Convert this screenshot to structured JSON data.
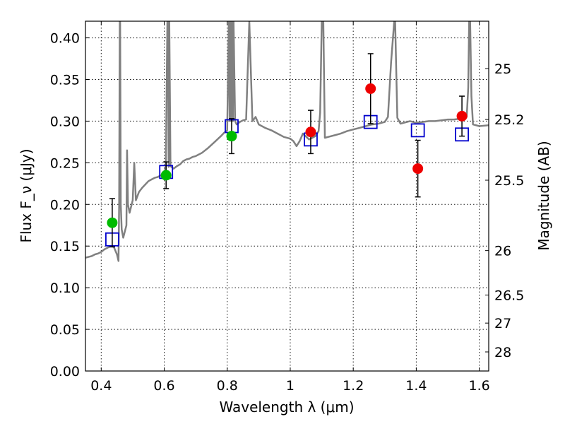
{
  "chart_data": {
    "type": "scatter",
    "title": "",
    "xlabel": "Wavelength λ (μm)",
    "ylabel": "Flux F_ν (μJy)",
    "ylabel_right": "Magnitude (AB)",
    "xlim": [
      0.35,
      1.63
    ],
    "ylim": [
      0.0,
      0.42
    ],
    "grid": true,
    "x_ticks": [
      {
        "value": 0.4,
        "label": "0.4"
      },
      {
        "value": 0.6,
        "label": "0.6"
      },
      {
        "value": 0.8,
        "label": "0.8"
      },
      {
        "value": 1.0,
        "label": "1"
      },
      {
        "value": 1.2,
        "label": "1.2"
      },
      {
        "value": 1.4,
        "label": "1.4"
      },
      {
        "value": 1.6,
        "label": "1.6"
      }
    ],
    "y_ticks": [
      {
        "value": 0.0,
        "label": "0.00"
      },
      {
        "value": 0.05,
        "label": "0.05"
      },
      {
        "value": 0.1,
        "label": "0.10"
      },
      {
        "value": 0.15,
        "label": "0.15"
      },
      {
        "value": 0.2,
        "label": "0.20"
      },
      {
        "value": 0.25,
        "label": "0.25"
      },
      {
        "value": 0.3,
        "label": "0.30"
      },
      {
        "value": 0.35,
        "label": "0.35"
      },
      {
        "value": 0.4,
        "label": "0.40"
      }
    ],
    "right_ticks": [
      {
        "mag": 25,
        "label": "25"
      },
      {
        "mag": 25.2,
        "label": "25.2"
      },
      {
        "mag": 25.5,
        "label": "25.5"
      },
      {
        "mag": 26,
        "label": "26"
      },
      {
        "mag": 26.5,
        "label": "26.5"
      },
      {
        "mag": 27,
        "label": "27"
      },
      {
        "mag": 28,
        "label": "28"
      }
    ],
    "colors": {
      "spectrum": "#808080",
      "green_points": "#00bb00",
      "red_points": "#ee0000",
      "model_squares": "#0000cc",
      "errorbars": "#000000"
    },
    "series": [
      {
        "kind": "observed_green",
        "points": [
          {
            "x": 0.435,
            "y": 0.178,
            "err": 0.029
          },
          {
            "x": 0.606,
            "y": 0.235,
            "err": 0.016
          },
          {
            "x": 0.814,
            "y": 0.282,
            "err": 0.021
          }
        ]
      },
      {
        "kind": "observed_red",
        "points": [
          {
            "x": 1.065,
            "y": 0.287,
            "err": 0.026
          },
          {
            "x": 1.255,
            "y": 0.339,
            "err": 0.042
          },
          {
            "x": 1.405,
            "y": 0.243,
            "err": 0.034
          },
          {
            "x": 1.545,
            "y": 0.306,
            "err": 0.024
          }
        ]
      },
      {
        "kind": "model_squares",
        "points": [
          {
            "x": 0.435,
            "y": 0.158
          },
          {
            "x": 0.606,
            "y": 0.239
          },
          {
            "x": 0.814,
            "y": 0.294
          },
          {
            "x": 1.065,
            "y": 0.278
          },
          {
            "x": 1.255,
            "y": 0.299
          },
          {
            "x": 1.405,
            "y": 0.289
          },
          {
            "x": 1.545,
            "y": 0.284
          }
        ]
      },
      {
        "kind": "model_spectrum",
        "x": [
          0.35,
          0.36,
          0.37,
          0.38,
          0.39,
          0.4,
          0.41,
          0.42,
          0.43,
          0.44,
          0.45,
          0.455,
          0.457,
          0.459,
          0.46,
          0.462,
          0.465,
          0.47,
          0.48,
          0.482,
          0.485,
          0.49,
          0.5,
          0.505,
          0.51,
          0.52,
          0.53,
          0.54,
          0.55,
          0.56,
          0.57,
          0.58,
          0.59,
          0.6,
          0.605,
          0.61,
          0.612,
          0.614,
          0.616,
          0.62,
          0.63,
          0.64,
          0.65,
          0.66,
          0.67,
          0.68,
          0.69,
          0.7,
          0.72,
          0.74,
          0.76,
          0.78,
          0.79,
          0.8,
          0.805,
          0.808,
          0.81,
          0.812,
          0.815,
          0.818,
          0.82,
          0.825,
          0.83,
          0.84,
          0.85,
          0.86,
          0.87,
          0.88,
          0.89,
          0.9,
          0.92,
          0.94,
          0.96,
          0.98,
          1.0,
          1.01,
          1.02,
          1.03,
          1.04,
          1.06,
          1.08,
          1.09,
          1.095,
          1.1,
          1.105,
          1.11,
          1.12,
          1.14,
          1.16,
          1.18,
          1.2,
          1.22,
          1.24,
          1.26,
          1.28,
          1.3,
          1.31,
          1.32,
          1.33,
          1.333,
          1.336,
          1.34,
          1.35,
          1.36,
          1.38,
          1.4,
          1.42,
          1.44,
          1.46,
          1.48,
          1.5,
          1.52,
          1.54,
          1.56,
          1.565,
          1.568,
          1.571,
          1.575,
          1.58,
          1.6,
          1.63
        ],
        "y": [
          0.136,
          0.137,
          0.138,
          0.14,
          0.141,
          0.143,
          0.146,
          0.148,
          0.15,
          0.149,
          0.14,
          0.132,
          0.2,
          0.42,
          0.42,
          0.2,
          0.17,
          0.16,
          0.175,
          0.265,
          0.2,
          0.19,
          0.205,
          0.25,
          0.205,
          0.215,
          0.22,
          0.224,
          0.228,
          0.23,
          0.232,
          0.233,
          0.235,
          0.237,
          0.245,
          0.42,
          0.42,
          0.245,
          0.42,
          0.246,
          0.243,
          0.246,
          0.248,
          0.252,
          0.254,
          0.255,
          0.257,
          0.258,
          0.262,
          0.268,
          0.275,
          0.282,
          0.286,
          0.289,
          0.42,
          0.3,
          0.42,
          0.3,
          0.42,
          0.3,
          0.42,
          0.3,
          0.296,
          0.299,
          0.301,
          0.302,
          0.42,
          0.3,
          0.305,
          0.296,
          0.292,
          0.289,
          0.285,
          0.281,
          0.279,
          0.276,
          0.27,
          0.276,
          0.285,
          0.278,
          0.282,
          0.288,
          0.31,
          0.42,
          0.42,
          0.28,
          0.281,
          0.283,
          0.285,
          0.288,
          0.29,
          0.292,
          0.294,
          0.296,
          0.297,
          0.299,
          0.305,
          0.37,
          0.42,
          0.42,
          0.37,
          0.304,
          0.297,
          0.298,
          0.3,
          0.298,
          0.299,
          0.3,
          0.3,
          0.301,
          0.302,
          0.302,
          0.303,
          0.305,
          0.34,
          0.42,
          0.42,
          0.33,
          0.296,
          0.294,
          0.295
        ]
      }
    ]
  }
}
